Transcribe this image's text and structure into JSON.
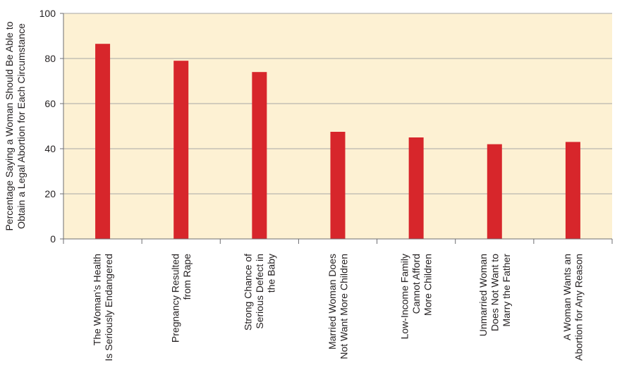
{
  "chart_data": {
    "type": "bar",
    "ylabel": [
      "Percentage Saying a Woman Should Be Able to",
      "Obtain a Legal Abortion for Each Circumstance"
    ],
    "ylim": [
      0,
      100
    ],
    "yticks": [
      0,
      20,
      40,
      60,
      80,
      100
    ],
    "grid": true,
    "categories": [
      [
        "The Woman’s Health",
        "Is Seriously Endangered"
      ],
      [
        "Pregnancy Resulted",
        "from Rape"
      ],
      [
        "Strong Chance of",
        "Serious Defect in",
        "the Baby"
      ],
      [
        "Married Woman Does",
        "Not Want More Children"
      ],
      [
        "Low-Income Family",
        "Cannot Afford",
        "More Children"
      ],
      [
        "Unmarried Woman",
        "Does Not Want to",
        "Marry the Father"
      ],
      [
        "A Woman Wants an",
        "Abortion for Any Reason"
      ]
    ],
    "values": [
      86.5,
      79,
      74,
      47.5,
      45,
      42,
      43
    ]
  },
  "colors": {
    "plot_background": "#fdf1d3",
    "bar": "#d7262b",
    "gridline": "#a7a6a6",
    "axis": "#6d6e71",
    "text": "#231f20"
  }
}
